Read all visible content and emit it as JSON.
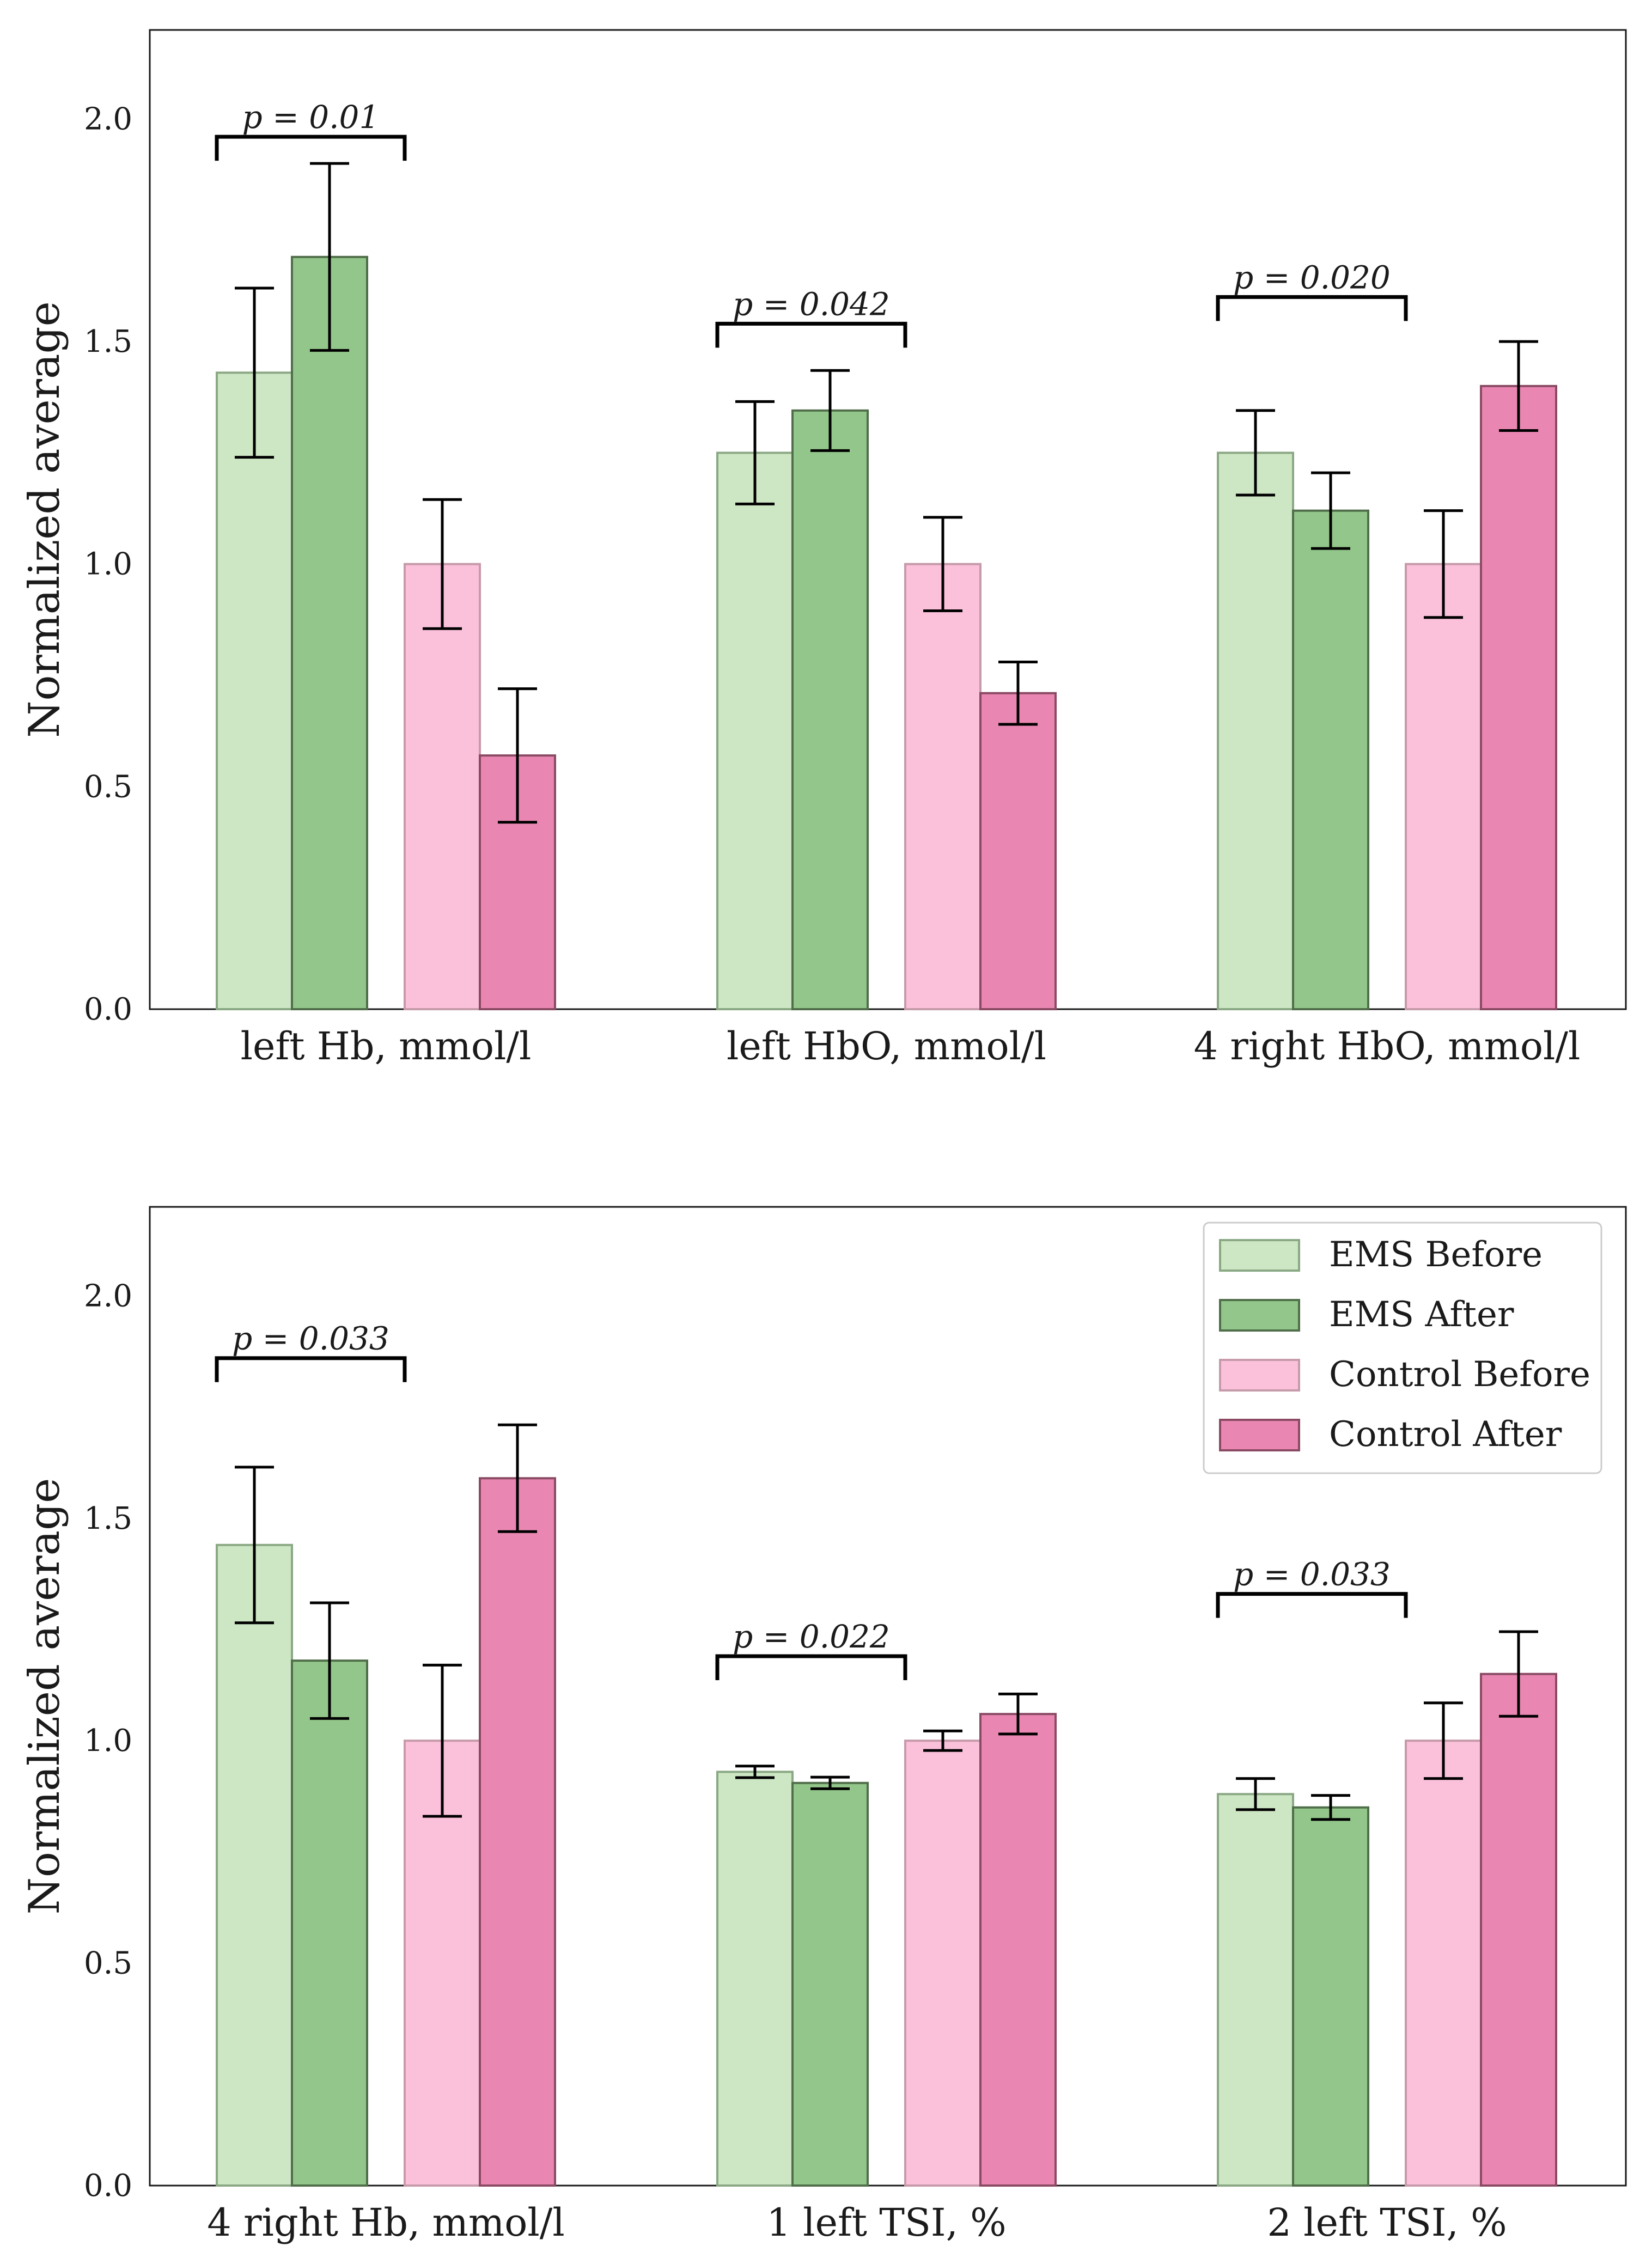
{
  "colors": {
    "ems_before": "#cde6c4",
    "ems_after": "#93c68a",
    "control_before": "#fbc1db",
    "control_after": "#e987b2"
  },
  "legend": {
    "items": [
      {
        "label": "EMS Before",
        "color_key": "ems_before"
      },
      {
        "label": "EMS After",
        "color_key": "ems_after"
      },
      {
        "label": "Control Before",
        "color_key": "control_before"
      },
      {
        "label": "Control After",
        "color_key": "control_after"
      }
    ]
  },
  "chart_data": [
    {
      "type": "bar",
      "ylabel": "Normalized average",
      "ylim": [
        0,
        2.2
      ],
      "yticks": [
        "0.0",
        "0.5",
        "1.0",
        "1.5",
        "2.0"
      ],
      "categories": [
        "left Hb, mmol/l",
        "left HbO, mmol/l",
        "4 right HbO, mmol/l"
      ],
      "series": [
        {
          "name": "EMS Before",
          "values": [
            1.43,
            1.25,
            1.25
          ],
          "err": [
            0.19,
            0.115,
            0.095
          ]
        },
        {
          "name": "EMS After",
          "values": [
            1.69,
            1.345,
            1.12
          ],
          "err": [
            0.21,
            0.09,
            0.085
          ]
        },
        {
          "name": "Control Before",
          "values": [
            1.0,
            1.0,
            1.0
          ],
          "err": [
            0.145,
            0.105,
            0.12
          ]
        },
        {
          "name": "Control After",
          "values": [
            0.57,
            0.71,
            1.4
          ],
          "err": [
            0.15,
            0.07,
            0.1
          ]
        }
      ],
      "annotations": [
        {
          "category": 0,
          "from_series": 0,
          "to_series": 2,
          "text": "p = 0.01",
          "y": 1.96
        },
        {
          "category": 1,
          "from_series": 0,
          "to_series": 2,
          "text": "p = 0.042",
          "y": 1.54
        },
        {
          "category": 2,
          "from_series": 0,
          "to_series": 2,
          "text": "p = 0.020",
          "y": 1.6
        }
      ],
      "legend": false
    },
    {
      "type": "bar",
      "ylabel": "Normalized average",
      "ylim": [
        0,
        2.2
      ],
      "yticks": [
        "0.0",
        "0.5",
        "1.0",
        "1.5",
        "2.0"
      ],
      "categories": [
        "4 right Hb, mmol/l",
        "1 left TSI, %",
        "2 left TSI, %"
      ],
      "series": [
        {
          "name": "EMS Before",
          "values": [
            1.44,
            0.93,
            0.88
          ],
          "err": [
            0.175,
            0.013,
            0.035
          ]
        },
        {
          "name": "EMS After",
          "values": [
            1.18,
            0.905,
            0.85
          ],
          "err": [
            0.13,
            0.013,
            0.027
          ]
        },
        {
          "name": "Control Before",
          "values": [
            1.0,
            1.0,
            1.0
          ],
          "err": [
            0.17,
            0.022,
            0.085
          ]
        },
        {
          "name": "Control After",
          "values": [
            1.59,
            1.06,
            1.15
          ],
          "err": [
            0.12,
            0.045,
            0.095
          ]
        }
      ],
      "annotations": [
        {
          "category": 0,
          "from_series": 0,
          "to_series": 2,
          "text": "p = 0.033",
          "y": 1.86
        },
        {
          "category": 1,
          "from_series": 0,
          "to_series": 2,
          "text": "p = 0.022",
          "y": 1.19
        },
        {
          "category": 2,
          "from_series": 0,
          "to_series": 2,
          "text": "p = 0.033",
          "y": 1.33
        }
      ],
      "legend": true,
      "legend_position": "top-right"
    }
  ]
}
